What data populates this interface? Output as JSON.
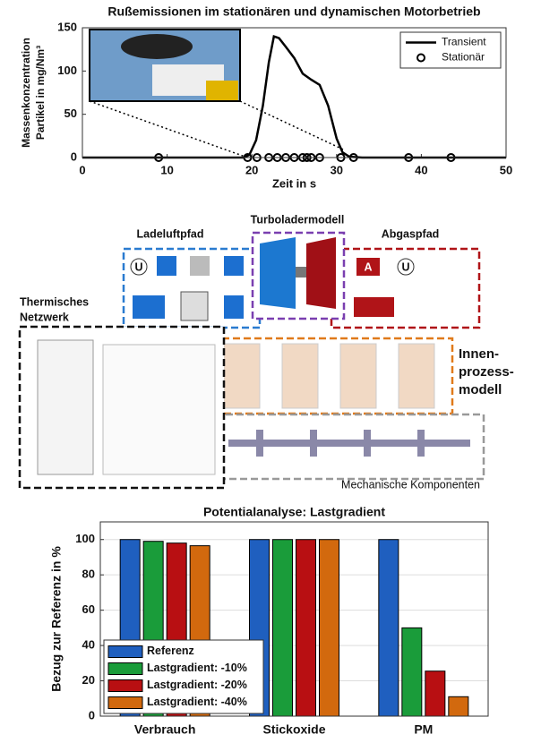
{
  "chart_data": [
    {
      "type": "line",
      "title": "Rußemissionen im stationären und dynamischen Motorbetrieb",
      "xlabel": "Zeit in s",
      "ylabel": [
        "Massenkonzentration",
        "Partikel in mg/Nm³"
      ],
      "xlim": [
        0,
        50
      ],
      "xticks": [
        0,
        10,
        20,
        30,
        40,
        50
      ],
      "ylim": [
        0,
        150
      ],
      "yticks": [
        0,
        50,
        100,
        150
      ],
      "grid": false,
      "legend": "upper right",
      "series": [
        {
          "name": "Transient",
          "color": "#000000",
          "style": "line",
          "x": [
            0,
            19,
            19.7,
            20.5,
            21.3,
            22,
            22.6,
            23.2,
            24,
            25,
            26,
            27,
            28,
            29,
            30,
            30.7,
            31.5,
            33,
            40,
            50
          ],
          "values": [
            0,
            0,
            3,
            20,
            60,
            110,
            140,
            138,
            128,
            115,
            97,
            90,
            84,
            60,
            22,
            6,
            1,
            0,
            0,
            0
          ]
        },
        {
          "name": "Stationär",
          "color": "#000000",
          "style": "marker",
          "x": [
            9,
            19.5,
            20.6,
            22,
            23,
            24,
            25,
            26,
            26.5,
            27,
            28,
            30.5,
            32,
            38.5,
            43.5
          ],
          "values": [
            0,
            0,
            0,
            0,
            0,
            0,
            0,
            0,
            0,
            0,
            0,
            0,
            0,
            0,
            0
          ]
        }
      ]
    },
    {
      "type": "bar",
      "title": "Potentialanalyse: Lastgradient",
      "ylabel": "Bezug zur Referenz in %",
      "categories": [
        "Verbrauch",
        "Stickoxide",
        "PM"
      ],
      "ylim": [
        0,
        110
      ],
      "yticks": [
        0,
        20,
        40,
        60,
        80,
        100
      ],
      "grid": true,
      "legend": "lower left",
      "series": [
        {
          "name": "Referenz",
          "color": "#1f5fbf",
          "values": [
            100,
            100,
            100
          ]
        },
        {
          "name": "Lastgradient: -10%",
          "color": "#1a9c3a",
          "values": [
            99,
            100,
            50
          ]
        },
        {
          "name": "Lastgradient: -20%",
          "color": "#b80f12",
          "values": [
            98,
            100,
            25.5
          ]
        },
        {
          "name": "Lastgradient: -40%",
          "color": "#d2690e",
          "values": [
            96.5,
            100,
            11
          ]
        }
      ]
    }
  ],
  "diagram": {
    "ladeluft": "Ladeluftpfad",
    "turbolader": "Turboladermodell",
    "abgas": "Abgaspfad",
    "thermisch": [
      "Thermisches",
      "Netzwerk"
    ],
    "innen": [
      "Innen-",
      "prozess-",
      "modell"
    ],
    "mechanik": "Mechanische Komponenten",
    "symbol_u": "U",
    "symbol_a": "A"
  }
}
